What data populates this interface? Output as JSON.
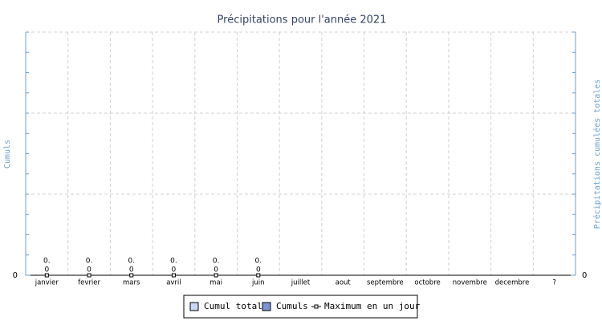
{
  "chart_data": {
    "type": "bar",
    "title": "Précipitations pour l'année 2021",
    "y_label": "Cumuls",
    "y2_label": "Précipitations cumulées totales",
    "categories": [
      "janvier",
      "fevrier",
      "mars",
      "avril",
      "mai",
      "juin",
      "juillet",
      "aout",
      "septembre",
      "octobre",
      "novembre",
      "decembre",
      "?"
    ],
    "series": [
      {
        "name": "Cumul total",
        "color": "#c8d8f4",
        "values": [
          0,
          0,
          0,
          0,
          0,
          0,
          null,
          null,
          null,
          null,
          null,
          null,
          null
        ],
        "value_labels": [
          "0.",
          "0.",
          "0.",
          "0.",
          "0.",
          "0.",
          null,
          null,
          null,
          null,
          null,
          null,
          null
        ]
      },
      {
        "name": "Cumuls",
        "color": "#7b97d3",
        "values": [
          0,
          0,
          0,
          0,
          0,
          0,
          null,
          null,
          null,
          null,
          null,
          null,
          null
        ],
        "value_labels": [
          "0",
          "0",
          "0",
          "0",
          "0",
          "0",
          null,
          null,
          null,
          null,
          null,
          null,
          null
        ]
      },
      {
        "name": "Maximum en un jour",
        "color": "#000000",
        "values": [
          0,
          0,
          0,
          0,
          0,
          0,
          null,
          null,
          null,
          null,
          null,
          null,
          null
        ]
      }
    ],
    "ylim": [
      0,
      3
    ],
    "yticks": [
      0
    ],
    "y2lim": [
      0,
      3
    ],
    "y2ticks": [
      0
    ],
    "ygrid": [
      1,
      2,
      3
    ],
    "grid": true
  }
}
